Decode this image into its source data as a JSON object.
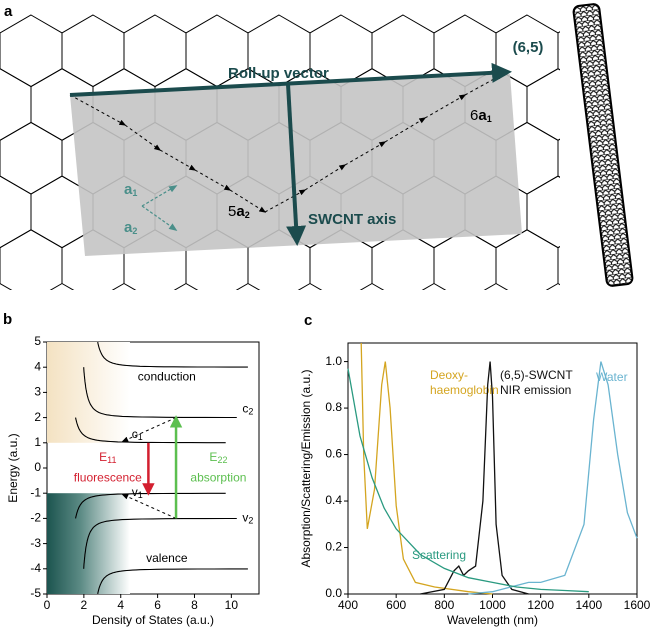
{
  "panel_a": {
    "label": "a",
    "chiral_index": "(6,5)",
    "roll_up_vector": "Roll-up vector",
    "axis": "SWCNT axis",
    "a1": {
      "vector": "a",
      "index": "1"
    },
    "a2": {
      "vector": "a",
      "index": "2"
    },
    "step_a1": {
      "coefficient": "6",
      "vector": "a",
      "index": "1"
    },
    "step_a2": {
      "coefficient": "5",
      "vector": "a",
      "index": "2"
    }
  },
  "chart_data": [
    {
      "type": "dos",
      "panel": "b",
      "xlabel": "Density of States (a.u.)",
      "ylabel": "Energy (a.u.)",
      "xlim": [
        0,
        11.5
      ],
      "ylim": [
        -5,
        5
      ],
      "xticks": [
        0,
        2,
        4,
        6,
        8,
        10
      ],
      "yticks": [
        -5,
        -4,
        -3,
        -2,
        -1,
        0,
        1,
        2,
        3,
        4,
        5
      ],
      "band_edges": [
        1,
        2,
        4,
        -1,
        -2,
        -4
      ],
      "regions": [
        "conduction",
        "valence"
      ],
      "states": [
        {
          "letter": "c",
          "index": "2",
          "energy": 2
        },
        {
          "letter": "c",
          "index": "1",
          "energy": 1
        },
        {
          "letter": "v",
          "index": "1",
          "energy": -1
        },
        {
          "letter": "v",
          "index": "2",
          "energy": -2
        }
      ],
      "transitions": [
        {
          "letter": "E",
          "index": "11",
          "text": "fluorescence",
          "from": 1,
          "to": -1,
          "color": "#d31f2f"
        },
        {
          "letter": "E",
          "index": "22",
          "text": "absorption",
          "from": -2,
          "to": 2,
          "color": "#5cbf4f"
        }
      ]
    },
    {
      "type": "line",
      "panel": "c",
      "xlabel": "Wavelength (nm)",
      "ylabel": "Absorption/Scattering/Emission (a.u.)",
      "xlim": [
        400,
        1600
      ],
      "ylim": [
        0,
        1.08
      ],
      "xticks": [
        400,
        600,
        800,
        1000,
        1200,
        1400,
        1600
      ],
      "yticks": [
        {
          "value": 0,
          "label": "0.0"
        },
        0.2,
        0.4,
        0.6,
        0.8,
        {
          "value": 1,
          "label": "1.0"
        }
      ],
      "series": [
        {
          "label": [
            "Deoxy-",
            "haemoglobin"
          ],
          "color": "#d4a520",
          "x": [
            455,
            465,
            480,
            510,
            540,
            555,
            575,
            600,
            630,
            680,
            760,
            900,
            1000
          ],
          "values": [
            1.08,
            0.6,
            0.28,
            0.45,
            0.9,
            1.0,
            0.8,
            0.38,
            0.15,
            0.05,
            0.03,
            0.01,
            0
          ]
        },
        {
          "label": [
            "(6,5)-SWCNT",
            "NIR emission"
          ],
          "color": "#111111",
          "x": [
            700,
            800,
            840,
            860,
            880,
            900,
            930,
            960,
            980,
            990,
            1000,
            1015,
            1040,
            1080,
            1150
          ],
          "values": [
            0,
            0.02,
            0.1,
            0.12,
            0.08,
            0.1,
            0.12,
            0.4,
            0.9,
            1.0,
            0.85,
            0.3,
            0.08,
            0.02,
            0
          ]
        },
        {
          "label": [
            "Water"
          ],
          "color": "#6ab4d0",
          "x": [
            900,
            1000,
            1150,
            1200,
            1300,
            1380,
            1420,
            1450,
            1480,
            1520,
            1560,
            1600
          ],
          "values": [
            0,
            0.01,
            0.05,
            0.05,
            0.08,
            0.3,
            0.75,
            1.0,
            0.9,
            0.6,
            0.35,
            0.24
          ]
        },
        {
          "label": [
            "Scattering"
          ],
          "color": "#2a9a80",
          "x": [
            400,
            450,
            500,
            550,
            600,
            700,
            800,
            900,
            1000,
            1100,
            1200,
            1300,
            1400
          ],
          "values": [
            0.97,
            0.68,
            0.5,
            0.37,
            0.28,
            0.17,
            0.11,
            0.07,
            0.05,
            0.03,
            0.02,
            0.015,
            0.01
          ]
        }
      ]
    }
  ]
}
